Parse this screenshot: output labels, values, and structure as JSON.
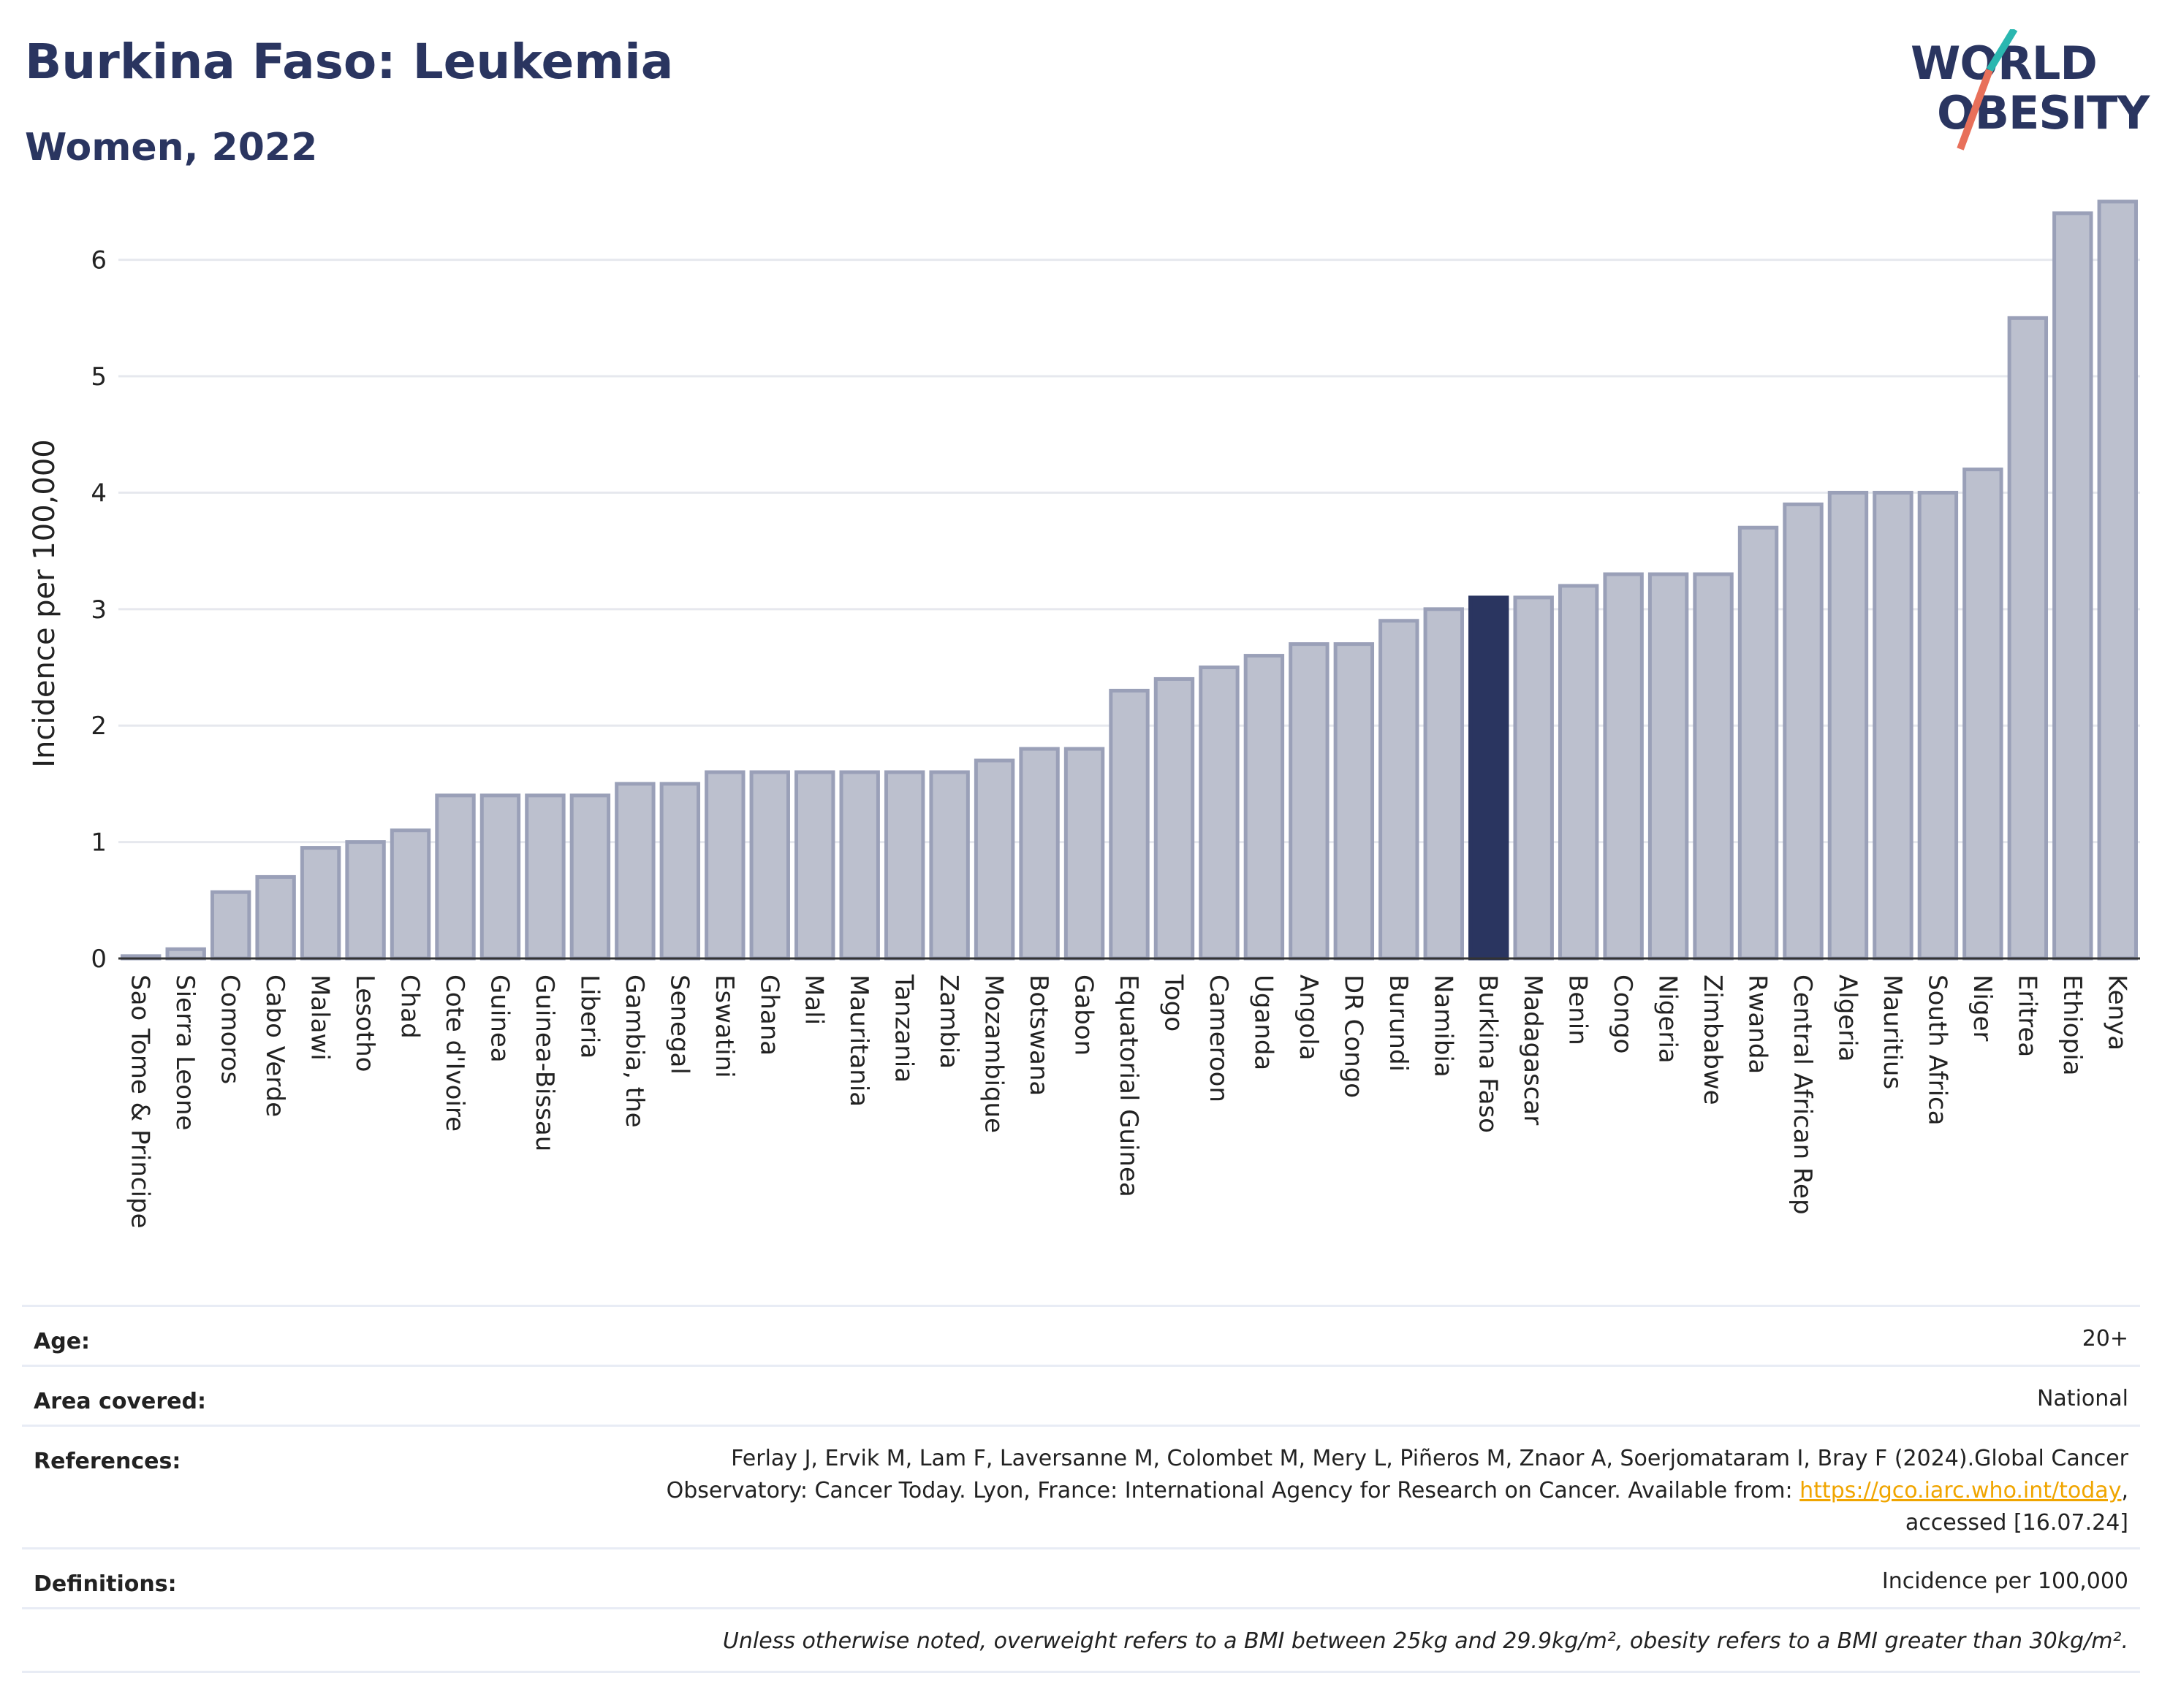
{
  "title": "Burkina Faso: Leukemia",
  "subtitle": "Women, 2022",
  "logo": {
    "line1": "WORLD",
    "line2": "OBESITY"
  },
  "chart_data": {
    "type": "bar",
    "ylabel": "Incidence per 100,000",
    "ylim": [
      0,
      6.6
    ],
    "yticks": [
      0,
      1,
      2,
      3,
      4,
      5,
      6
    ],
    "grid": true,
    "highlight": "Burkina Faso",
    "colors": {
      "bar": "#bcc0ce",
      "bar_border": "#9aa0b8",
      "highlight": "#2a3560",
      "grid": "#e6e8ee",
      "axis": "#333333"
    },
    "categories": [
      "Sao Tome & Principe",
      "Sierra Leone",
      "Comoros",
      "Cabo Verde",
      "Malawi",
      "Lesotho",
      "Chad",
      "Cote d'Ivoire",
      "Guinea",
      "Guinea-Bissau",
      "Liberia",
      "Gambia, the",
      "Senegal",
      "Eswatini",
      "Ghana",
      "Mali",
      "Mauritania",
      "Tanzania",
      "Zambia",
      "Mozambique",
      "Botswana",
      "Gabon",
      "Equatorial Guinea",
      "Togo",
      "Cameroon",
      "Uganda",
      "Angola",
      "DR Congo",
      "Burundi",
      "Namibia",
      "Burkina Faso",
      "Madagascar",
      "Benin",
      "Congo",
      "Nigeria",
      "Zimbabwe",
      "Rwanda",
      "Central African Rep",
      "Algeria",
      "Mauritius",
      "South Africa",
      "Niger",
      "Eritrea",
      "Ethiopia",
      "Kenya"
    ],
    "values": [
      0.02,
      0.08,
      0.57,
      0.7,
      0.95,
      1.0,
      1.1,
      1.4,
      1.4,
      1.4,
      1.4,
      1.5,
      1.5,
      1.6,
      1.6,
      1.6,
      1.6,
      1.6,
      1.6,
      1.7,
      1.8,
      1.8,
      2.3,
      2.4,
      2.5,
      2.6,
      2.7,
      2.7,
      2.9,
      3.0,
      3.1,
      3.1,
      3.2,
      3.3,
      3.3,
      3.3,
      3.7,
      3.9,
      4.0,
      4.0,
      4.0,
      4.2,
      5.5,
      6.4,
      6.5
    ]
  },
  "meta": {
    "age": {
      "label": "Age:",
      "value": "20+"
    },
    "area": {
      "label": "Area covered:",
      "value": "National"
    },
    "references": {
      "label": "References:",
      "line1": "Ferlay J, Ervik M, Lam F, Laversanne M, Colombet M, Mery L, Piñeros M, Znaor A, Soerjomataram I, Bray F (2024).Global Cancer",
      "line2_pre": "Observatory: Cancer Today. Lyon, France: International Agency for Research on Cancer. Available from: ",
      "link": "https://gco.iarc.who.int/today",
      "line2_post": ",",
      "line3": "accessed [16.07.24]"
    },
    "definitions": {
      "label": "Definitions:",
      "value": "Incidence per 100,000"
    },
    "note": "Unless otherwise noted, overweight refers to a BMI between 25kg and 29.9kg/m², obesity refers to a BMI greater than 30kg/m²."
  }
}
